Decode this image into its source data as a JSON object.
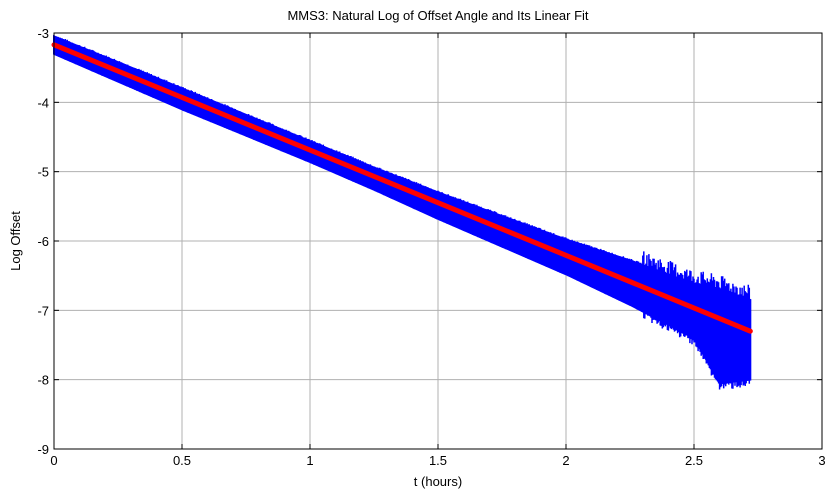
{
  "chart_data": {
    "type": "line",
    "title": "MMS3: Natural Log of Offset Angle and Its Linear Fit",
    "xlabel": "t  (hours)",
    "ylabel": "Log Offset",
    "xlim": [
      0,
      3
    ],
    "ylim": [
      -9,
      -3
    ],
    "xticks": [
      0,
      0.5,
      1,
      1.5,
      2,
      2.5,
      3
    ],
    "xtick_labels": [
      "0",
      "0.5",
      "1",
      "1.5",
      "2",
      "2.5",
      "3"
    ],
    "yticks": [
      -3,
      -4,
      -5,
      -6,
      -7,
      -8,
      -9
    ],
    "ytick_labels": [
      "-3",
      "-4",
      "-5",
      "-6",
      "-7",
      "-8",
      "-9"
    ],
    "grid": true,
    "series": [
      {
        "color": "#0000ff",
        "style": "noisy band",
        "x": [
          0,
          0.25,
          0.5,
          0.75,
          1.0,
          1.25,
          1.5,
          1.75,
          2.0,
          2.25,
          2.5,
          2.6,
          2.72
        ],
        "y_upper": [
          -3.05,
          -3.42,
          -3.8,
          -4.18,
          -4.56,
          -4.94,
          -5.3,
          -5.64,
          -5.98,
          -6.28,
          -6.62,
          -6.7,
          -6.85
        ],
        "y_lower": [
          -3.3,
          -3.7,
          -4.1,
          -4.48,
          -4.86,
          -5.26,
          -5.68,
          -6.08,
          -6.48,
          -6.92,
          -7.4,
          -8.05,
          -8.0
        ]
      },
      {
        "color": "#ff0000",
        "style": "line",
        "x": [
          0,
          2.72
        ],
        "y": [
          -3.17,
          -7.3
        ]
      }
    ]
  }
}
